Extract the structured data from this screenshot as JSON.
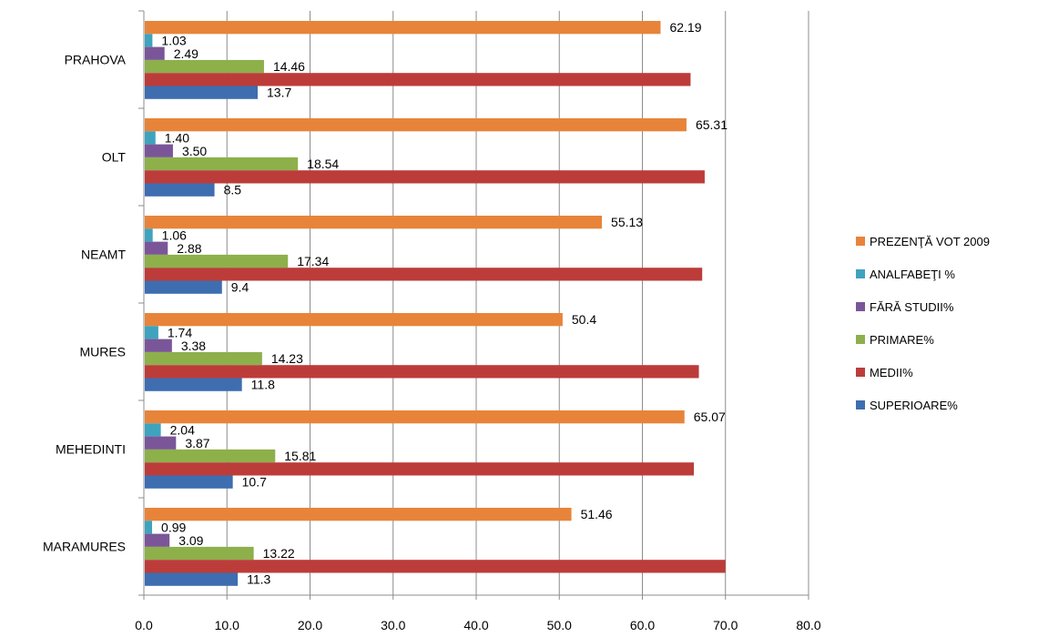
{
  "chart_data": {
    "type": "bar",
    "orientation": "horizontal",
    "title": "",
    "xlabel": "",
    "ylabel": "",
    "xlim": [
      0,
      80
    ],
    "x_ticks": [
      "0.0",
      "10.0",
      "20.0",
      "30.0",
      "40.0",
      "50.0",
      "60.0",
      "70.0",
      "80.0"
    ],
    "grid": true,
    "legend_position": "right",
    "categories": [
      "PRAHOVA",
      "OLT",
      "NEAMT",
      "MURES",
      "MEHEDINTI",
      "MARAMURES"
    ],
    "series": [
      {
        "name": "PREZENŢĂ VOT 2009",
        "color": "#E8843A",
        "values": [
          62.19,
          65.31,
          55.13,
          50.4,
          65.07,
          51.46
        ],
        "labels": [
          "62.19",
          "65.31",
          "55.13",
          "50.4",
          "65.07",
          "51.46"
        ]
      },
      {
        "name": "ANALFABEŢI %",
        "color": "#3FA3BE",
        "values": [
          1.03,
          1.4,
          1.06,
          1.74,
          2.04,
          0.99
        ],
        "labels": [
          "1.03",
          "1.40",
          "1.06",
          "1.74",
          "2.04",
          "0.99"
        ]
      },
      {
        "name": "FĂRĂ STUDII%",
        "color": "#7A5699",
        "values": [
          2.49,
          3.5,
          2.88,
          3.38,
          3.87,
          3.09
        ],
        "labels": [
          "2.49",
          "3.50",
          "2.88",
          "3.38",
          "3.87",
          "3.09"
        ]
      },
      {
        "name": "PRIMARE%",
        "color": "#8DB04B",
        "values": [
          14.46,
          18.54,
          17.34,
          14.23,
          15.81,
          13.22
        ],
        "labels": [
          "14.46",
          "18.54",
          "17.34",
          "14.23",
          "15.81",
          "13.22"
        ]
      },
      {
        "name": "MEDII%",
        "color": "#BC3C3A",
        "values": [
          65.8,
          67.5,
          67.2,
          66.8,
          66.2,
          70.0
        ],
        "labels": null
      },
      {
        "name": "SUPERIOARE%",
        "color": "#3E6DB0",
        "values": [
          13.7,
          8.5,
          9.4,
          11.8,
          10.7,
          11.3
        ],
        "labels": [
          "13.7",
          "8.5",
          "9.4",
          "11.8",
          "10.7",
          "11.3"
        ]
      }
    ]
  }
}
